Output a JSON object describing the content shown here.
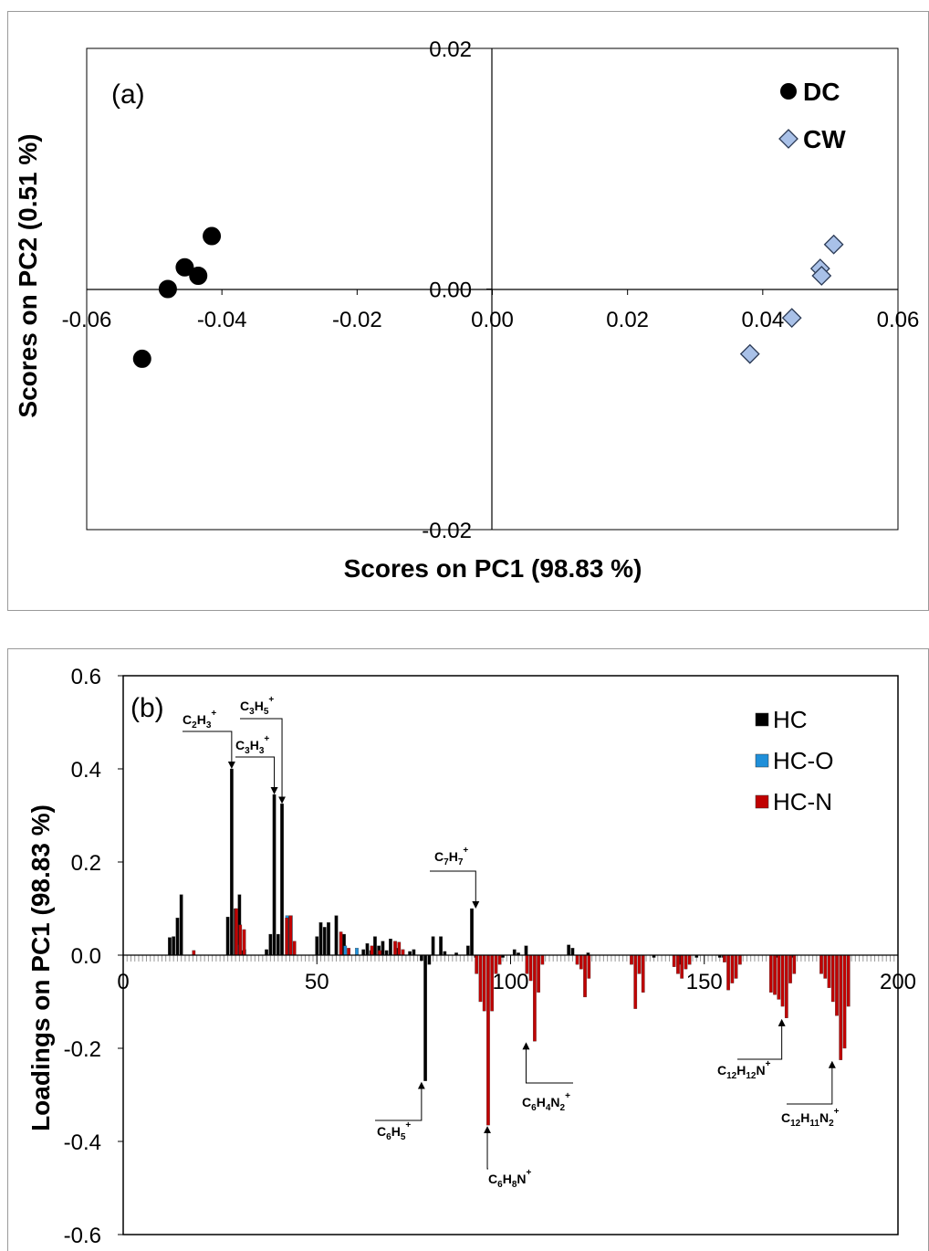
{
  "chart_data": [
    {
      "type": "scatter",
      "panel_label": "(a)",
      "xlabel": "Scores on PC1 (98.83 %)",
      "ylabel": "Scores on PC2 (0.51 %)",
      "xlim": [
        -0.06,
        0.06
      ],
      "ylim": [
        -0.02,
        0.02
      ],
      "x_ticks": [
        "-0.06",
        "-0.04",
        "-0.02",
        "0.00",
        "0.02",
        "0.04",
        "0.06"
      ],
      "y_ticks": [
        "0.02",
        "0.00",
        "-0.02"
      ],
      "legend_position": "top-right",
      "series": [
        {
          "name": "DC",
          "marker": "circle",
          "color": "#000000",
          "points": [
            [
              -0.0415,
              0.0044
            ],
            [
              -0.0435,
              0.0011
            ],
            [
              -0.0455,
              0.0018
            ],
            [
              -0.048,
              0.0
            ],
            [
              -0.0518,
              -0.0058
            ]
          ]
        },
        {
          "name": "CW",
          "marker": "diamond",
          "color": "#a9c1e8",
          "points": [
            [
              0.0505,
              0.0037
            ],
            [
              0.0485,
              0.0017
            ],
            [
              0.0487,
              0.0011
            ],
            [
              0.0443,
              -0.0024
            ],
            [
              0.0381,
              -0.0054
            ]
          ]
        }
      ]
    },
    {
      "type": "bar",
      "panel_label": "(b)",
      "xlabel": "",
      "ylabel": "Loadings on PC1 (98.83 %)",
      "xlim": [
        0,
        200
      ],
      "ylim": [
        -0.6,
        0.6
      ],
      "x_ticks": [
        "0",
        "50",
        "100",
        "150",
        "200"
      ],
      "y_ticks": [
        "0.6",
        "0.4",
        "0.2",
        "0.0",
        "-0.2",
        "-0.4",
        "-0.6"
      ],
      "legend_position": "top-right",
      "series": [
        {
          "name": "HC",
          "color": "#000000",
          "points": [
            [
              12,
              0.038
            ],
            [
              13,
              0.04
            ],
            [
              14,
              0.08
            ],
            [
              15,
              0.13
            ],
            [
              27,
              0.082
            ],
            [
              28,
              0.4
            ],
            [
              29,
              0.1
            ],
            [
              30,
              0.13
            ],
            [
              31,
              0.01
            ],
            [
              37,
              0.012
            ],
            [
              38,
              0.045
            ],
            [
              39,
              0.345
            ],
            [
              40,
              0.045
            ],
            [
              41,
              0.325
            ],
            [
              43,
              0.083
            ],
            [
              50,
              0.04
            ],
            [
              51,
              0.07
            ],
            [
              52,
              0.06
            ],
            [
              53,
              0.07
            ],
            [
              55,
              0.085
            ],
            [
              57,
              0.045
            ],
            [
              62,
              0.012
            ],
            [
              63,
              0.025
            ],
            [
              64,
              0.01
            ],
            [
              65,
              0.04
            ],
            [
              66,
              0.02
            ],
            [
              67,
              0.03
            ],
            [
              68,
              0.01
            ],
            [
              69,
              0.035
            ],
            [
              71,
              0.015
            ],
            [
              74,
              0.008
            ],
            [
              75,
              0.012
            ],
            [
              77,
              -0.012
            ],
            [
              78,
              -0.27
            ],
            [
              79,
              -0.02
            ],
            [
              80,
              0.04
            ],
            [
              82,
              0.04
            ],
            [
              83,
              0.008
            ],
            [
              86,
              0.005
            ],
            [
              89,
              0.02
            ],
            [
              90,
              0.1
            ],
            [
              91,
              -0.005
            ],
            [
              98,
              -0.005
            ],
            [
              101,
              0.012
            ],
            [
              102,
              0.005
            ],
            [
              104,
              0.02
            ],
            [
              115,
              0.022
            ],
            [
              116,
              0.015
            ],
            [
              120,
              0.005
            ],
            [
              137,
              -0.005
            ],
            [
              144,
              -0.02
            ],
            [
              148,
              -0.005
            ],
            [
              154,
              -0.005
            ],
            [
              155,
              -0.005
            ],
            [
              169,
              -0.005
            ],
            [
              173,
              -0.005
            ]
          ]
        },
        {
          "name": "HC-O",
          "color": "#1f8fd9",
          "points": [
            [
              29,
              0.022
            ],
            [
              31,
              0.012
            ],
            [
              42,
              0.085
            ],
            [
              43,
              0.085
            ],
            [
              57,
              0.02
            ],
            [
              60,
              0.015
            ]
          ]
        },
        {
          "name": "HC-N",
          "color": "#c00000",
          "points": [
            [
              18,
              0.01
            ],
            [
              29,
              0.1
            ],
            [
              30,
              0.065
            ],
            [
              31,
              0.055
            ],
            [
              42,
              0.08
            ],
            [
              43,
              0.085
            ],
            [
              44,
              0.03
            ],
            [
              56,
              0.05
            ],
            [
              58,
              0.015
            ],
            [
              64,
              0.02
            ],
            [
              66,
              0.01
            ],
            [
              70,
              0.03
            ],
            [
              71,
              0.028
            ],
            [
              72,
              0.012
            ],
            [
              91,
              -0.04
            ],
            [
              92,
              -0.1
            ],
            [
              93,
              -0.12
            ],
            [
              94,
              -0.365
            ],
            [
              95,
              -0.12
            ],
            [
              96,
              -0.04
            ],
            [
              97,
              -0.02
            ],
            [
              104,
              -0.04
            ],
            [
              105,
              -0.055
            ],
            [
              106,
              -0.185
            ],
            [
              107,
              -0.08
            ],
            [
              108,
              -0.02
            ],
            [
              117,
              -0.02
            ],
            [
              118,
              -0.03
            ],
            [
              119,
              -0.09
            ],
            [
              120,
              -0.05
            ],
            [
              131,
              -0.02
            ],
            [
              132,
              -0.115
            ],
            [
              133,
              -0.04
            ],
            [
              134,
              -0.08
            ],
            [
              142,
              -0.025
            ],
            [
              143,
              -0.04
            ],
            [
              144,
              -0.05
            ],
            [
              145,
              -0.03
            ],
            [
              146,
              -0.02
            ],
            [
              155,
              -0.015
            ],
            [
              156,
              -0.075
            ],
            [
              157,
              -0.06
            ],
            [
              158,
              -0.05
            ],
            [
              159,
              -0.02
            ],
            [
              167,
              -0.08
            ],
            [
              168,
              -0.085
            ],
            [
              169,
              -0.095
            ],
            [
              170,
              -0.11
            ],
            [
              171,
              -0.135
            ],
            [
              172,
              -0.06
            ],
            [
              173,
              -0.04
            ],
            [
              180,
              -0.04
            ],
            [
              181,
              -0.05
            ],
            [
              182,
              -0.07
            ],
            [
              183,
              -0.1
            ],
            [
              184,
              -0.13
            ],
            [
              185,
              -0.225
            ],
            [
              186,
              -0.2
            ],
            [
              187,
              -0.11
            ]
          ]
        }
      ],
      "annotations": [
        {
          "label": "C2H3+",
          "parts": [
            [
              "C",
              ""
            ],
            [
              "2",
              "sub"
            ],
            [
              "H",
              ""
            ],
            [
              "3",
              "sub"
            ],
            [
              "+",
              "sup"
            ]
          ],
          "x": 28,
          "y": 0.4
        },
        {
          "label": "C3H5+",
          "parts": [
            [
              "C",
              ""
            ],
            [
              "3",
              "sub"
            ],
            [
              "H",
              ""
            ],
            [
              "5",
              "sub"
            ],
            [
              "+",
              "sup"
            ]
          ],
          "x": 41,
          "y": 0.325
        },
        {
          "label": "C3H3+",
          "parts": [
            [
              "C",
              ""
            ],
            [
              "3",
              "sub"
            ],
            [
              "H",
              ""
            ],
            [
              "3",
              "sub"
            ],
            [
              "+",
              "sup"
            ]
          ],
          "x": 39,
          "y": 0.345
        },
        {
          "label": "C7H7+",
          "parts": [
            [
              "C",
              ""
            ],
            [
              "7",
              "sub"
            ],
            [
              "H",
              ""
            ],
            [
              "7",
              "sub"
            ],
            [
              "+",
              "sup"
            ]
          ],
          "x": 91,
          "y": 0.1
        },
        {
          "label": "C6H5+",
          "parts": [
            [
              "C",
              ""
            ],
            [
              "6",
              "sub"
            ],
            [
              "H",
              ""
            ],
            [
              "5",
              "sub"
            ],
            [
              "+",
              "sup"
            ]
          ],
          "x": 77,
          "y": -0.27
        },
        {
          "label": "C6H8N+",
          "parts": [
            [
              "C",
              ""
            ],
            [
              "6",
              "sub"
            ],
            [
              "H",
              ""
            ],
            [
              "8",
              "sub"
            ],
            [
              "N",
              ""
            ],
            [
              "+",
              "sup"
            ]
          ],
          "x": 94,
          "y": -0.365
        },
        {
          "label": "C6H4N2+",
          "parts": [
            [
              "C",
              ""
            ],
            [
              "6",
              "sub"
            ],
            [
              "H",
              ""
            ],
            [
              "4",
              "sub"
            ],
            [
              "N",
              ""
            ],
            [
              "2",
              "sub"
            ],
            [
              "+",
              "sup"
            ]
          ],
          "x": 104,
          "y": -0.185
        },
        {
          "label": "C12H12N+",
          "parts": [
            [
              "C",
              ""
            ],
            [
              "12",
              "sub"
            ],
            [
              "H",
              ""
            ],
            [
              "12",
              "sub"
            ],
            [
              "N",
              ""
            ],
            [
              "+",
              "sup"
            ]
          ],
          "x": 170,
          "y": -0.135
        },
        {
          "label": "C12H11N2+",
          "parts": [
            [
              "C",
              ""
            ],
            [
              "12",
              "sub"
            ],
            [
              "H",
              ""
            ],
            [
              "11",
              "sub"
            ],
            [
              "N",
              ""
            ],
            [
              "2",
              "sub"
            ],
            [
              "+",
              "sup"
            ]
          ],
          "x": 183,
          "y": -0.225
        }
      ]
    }
  ]
}
